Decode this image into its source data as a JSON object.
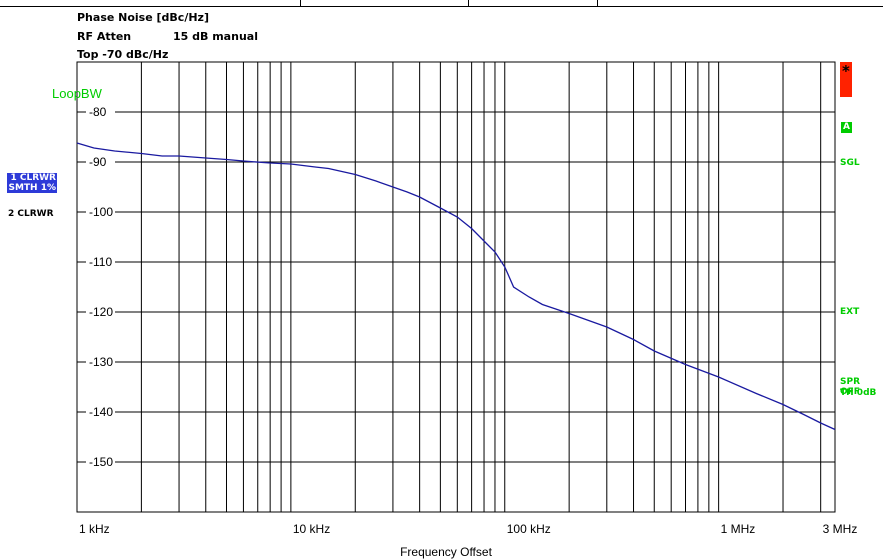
{
  "header": {
    "title": "Phase Noise [dBc/Hz]",
    "rf_atten_label": "RF Atten",
    "rf_atten_value": "15 dB manual",
    "top_label": "Top -70 dBc/Hz"
  },
  "left_panel": {
    "trace1_line1": "1 CLRWR",
    "trace1_line2": "SMTH 1%",
    "trace2": "2 CLRWR"
  },
  "right_panel": {
    "star": "*",
    "badge_a": "A",
    "sgl": "SGL",
    "ext": "EXT",
    "spr_off": "SPR OFF",
    "th": "TH 0dB"
  },
  "colors": {
    "trace": "#1a1aa0",
    "grid": "#000000",
    "annotation_green": "#00cc00",
    "left_badge_bg": "#2d3ad8",
    "star_bg": "#ff2200"
  },
  "chart_data": {
    "type": "line",
    "title": "Phase Noise [dBc/Hz]",
    "xlabel": "Frequency Offset",
    "ylabel": "",
    "x_scale": "log",
    "xlim": [
      1000,
      3500000
    ],
    "ylim": [
      -160,
      -70
    ],
    "grid": true,
    "legend": "none",
    "annotation": "LoopBW",
    "y_ticks": [
      -80,
      -90,
      -100,
      -110,
      -120,
      -130,
      -140,
      -150
    ],
    "y_tick_labels": [
      "-80",
      "-90",
      "-100",
      "-110",
      "-120",
      "-130",
      "-140",
      "-150"
    ],
    "x_ticks": [
      1000,
      10000,
      100000,
      1000000,
      3000000
    ],
    "x_tick_labels": [
      "1 kHz",
      "10 kHz",
      "100 kHz",
      "1 MHz",
      "3 MHz"
    ],
    "series": [
      {
        "x": [
          1000,
          1200,
          1500,
          2000,
          2500,
          3000,
          4000,
          5000,
          6000,
          8000,
          10000,
          13000,
          15000,
          20000,
          25000,
          30000,
          35000,
          40000,
          50000,
          60000,
          70000,
          80000,
          90000,
          100000,
          110000,
          130000,
          150000,
          200000,
          300000,
          400000,
          500000,
          700000,
          1000000,
          1500000,
          2000000,
          2500000,
          3000000,
          3500000
        ],
        "y": [
          -86.2,
          -87.2,
          -87.8,
          -88.3,
          -88.8,
          -88.8,
          -89.2,
          -89.5,
          -89.8,
          -90.2,
          -90.4,
          -91.0,
          -91.3,
          -92.5,
          -93.8,
          -95.0,
          -96.0,
          -97.0,
          -99.2,
          -101.0,
          -103.3,
          -105.8,
          -108.0,
          -111.0,
          -115.0,
          -117.0,
          -118.5,
          -120.3,
          -123.0,
          -125.5,
          -127.8,
          -130.5,
          -133.0,
          -136.3,
          -138.5,
          -140.5,
          -142.2,
          -143.5
        ]
      }
    ]
  }
}
